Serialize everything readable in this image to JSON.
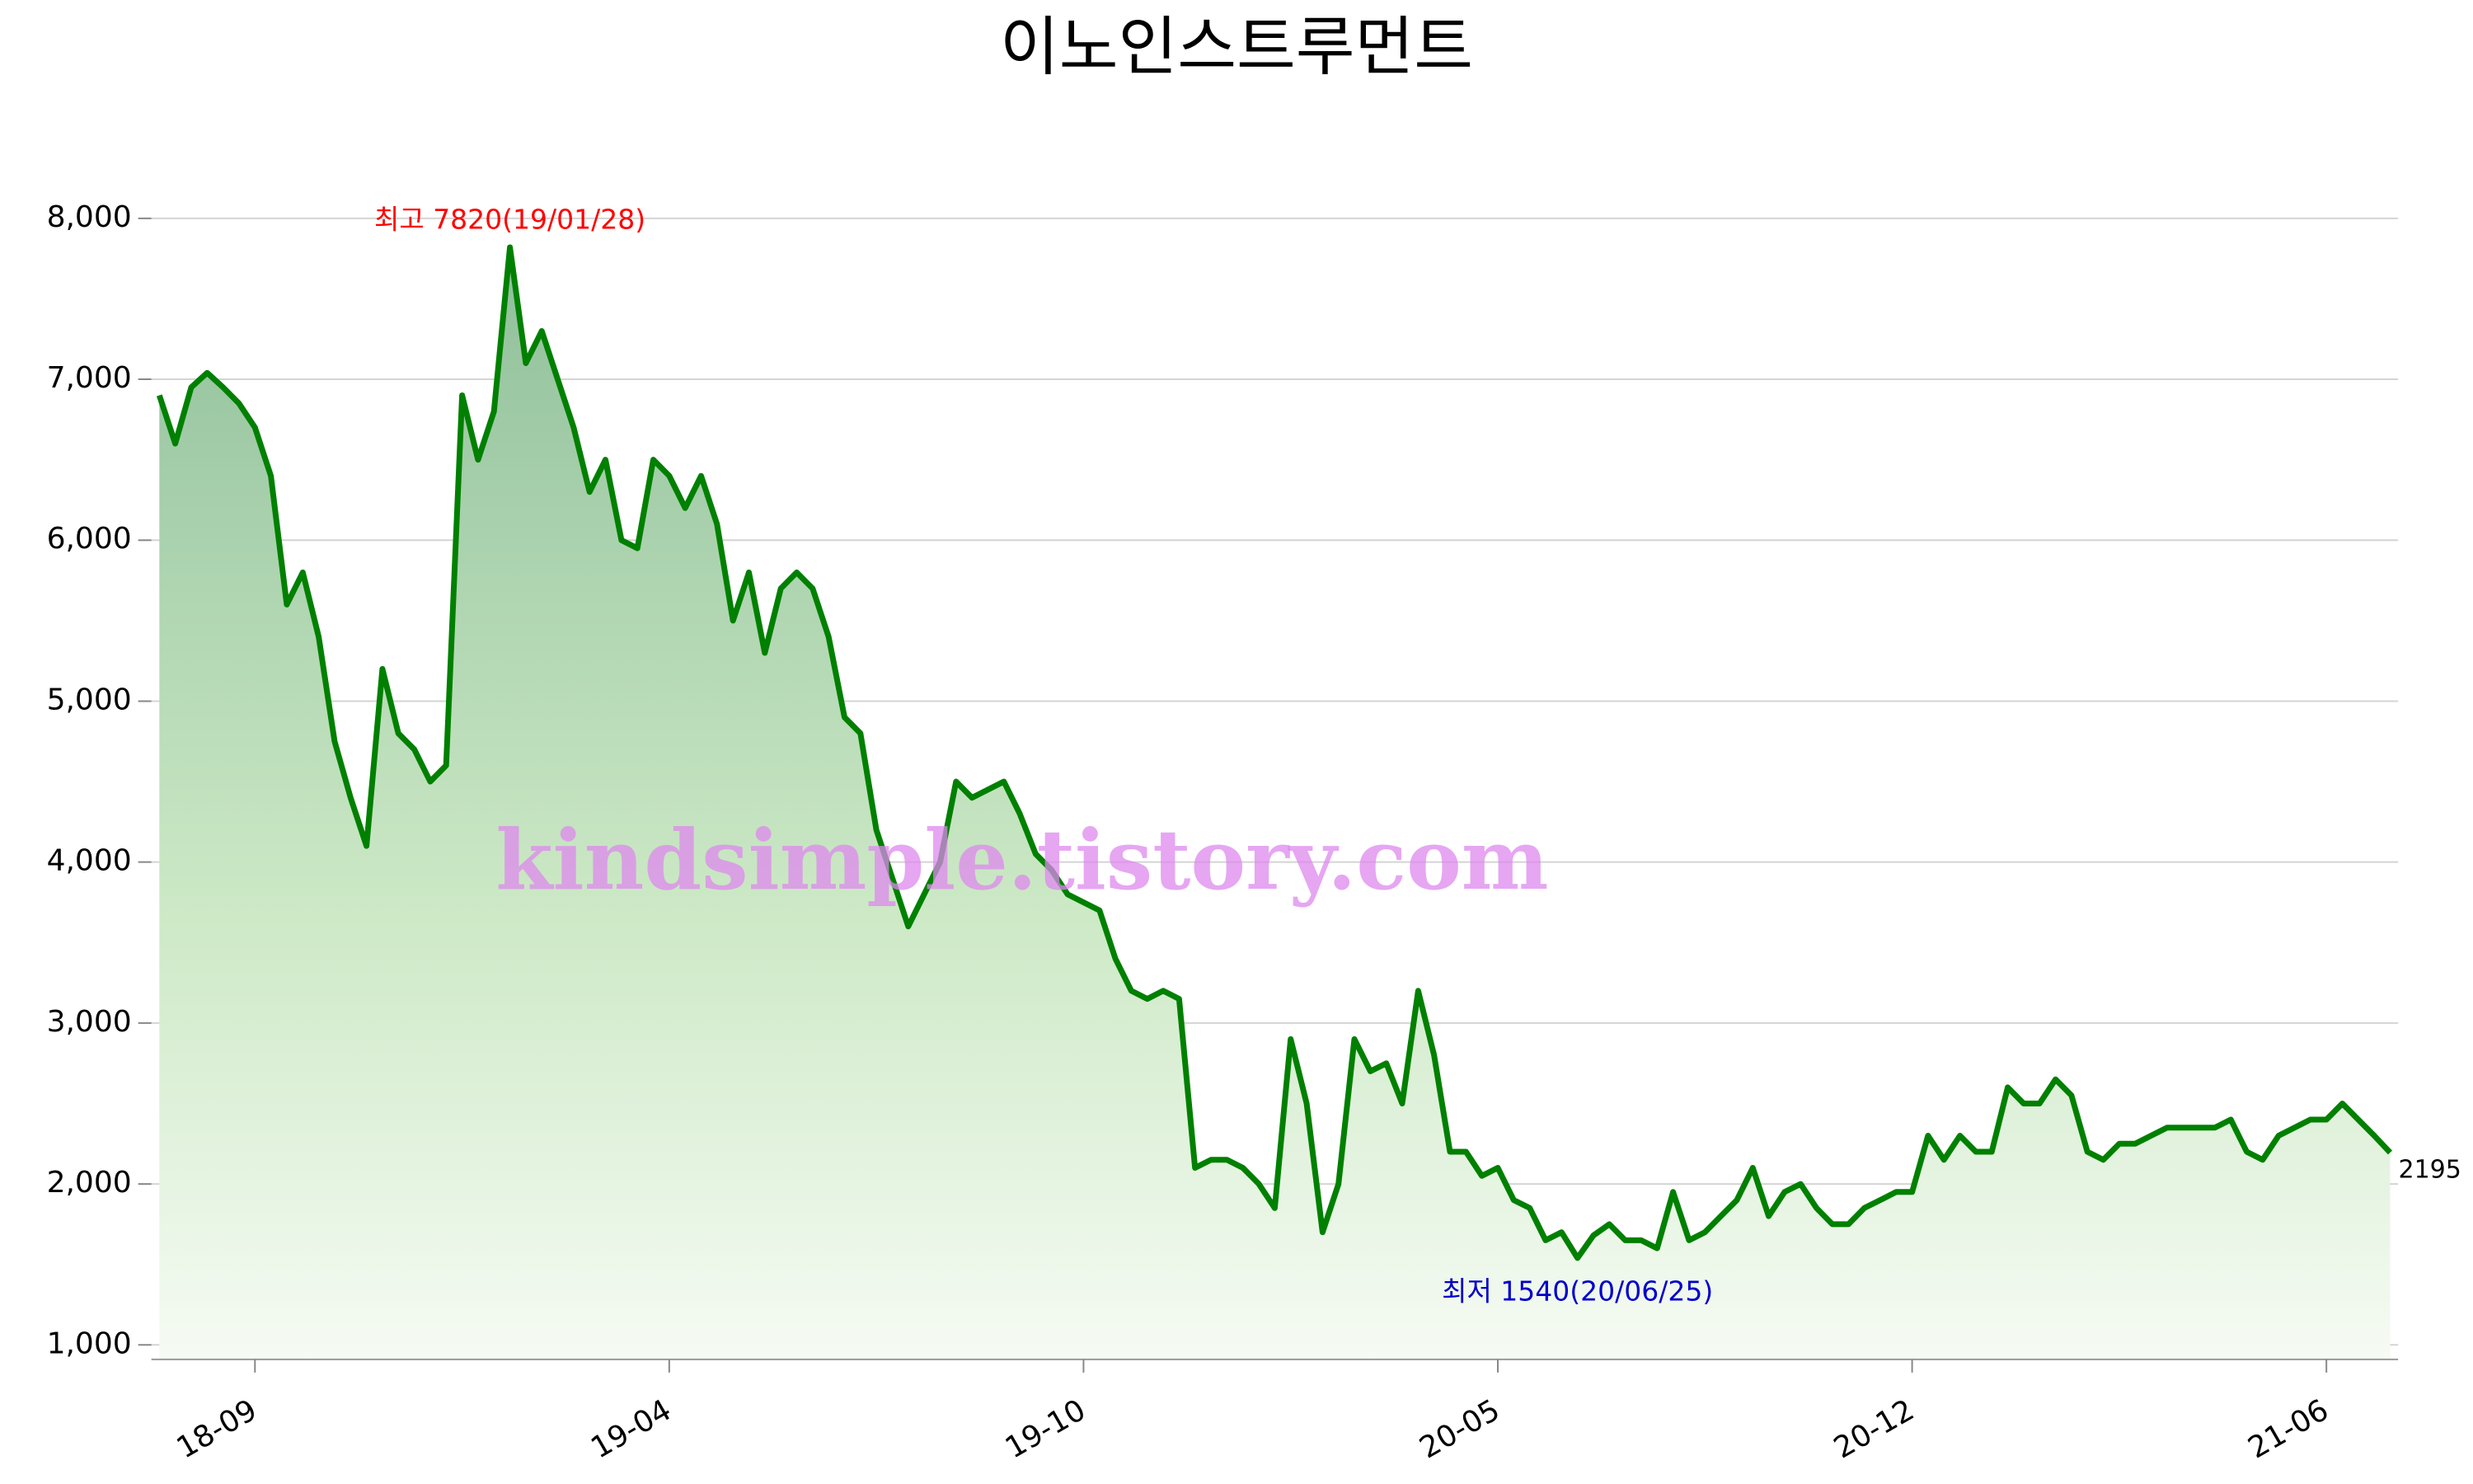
{
  "chart_data": {
    "type": "line",
    "title": "이노인스트루먼트",
    "watermark": "kindsimple.tistory.com",
    "high_label": "최고 7820(19/01/28)",
    "low_label": "최저 1540(20/06/25)",
    "last_label": "2195",
    "color": "#008000",
    "high_color": "#ff0000",
    "low_color": "#0000cc",
    "grid": true,
    "ylim": [
      910,
      8000
    ],
    "yticks": [
      {
        "value": 1000,
        "label": "1,000"
      },
      {
        "value": 2000,
        "label": "2,000"
      },
      {
        "value": 3000,
        "label": "3,000"
      },
      {
        "value": 4000,
        "label": "4,000"
      },
      {
        "value": 5000,
        "label": "5,000"
      },
      {
        "value": 6000,
        "label": "6,000"
      },
      {
        "value": 7000,
        "label": "7,000"
      },
      {
        "value": 8000,
        "label": "8,000"
      }
    ],
    "categories": [
      null,
      null,
      null,
      null,
      null,
      null,
      "18-09",
      null,
      null,
      null,
      null,
      null,
      null,
      null,
      null,
      null,
      null,
      null,
      null,
      null,
      null,
      null,
      null,
      null,
      null,
      null,
      null,
      null,
      null,
      null,
      null,
      null,
      "19-04",
      null,
      null,
      null,
      null,
      null,
      null,
      null,
      null,
      null,
      null,
      null,
      null,
      null,
      null,
      null,
      null,
      null,
      null,
      null,
      null,
      null,
      null,
      null,
      null,
      null,
      "19-10",
      null,
      null,
      null,
      null,
      null,
      null,
      null,
      null,
      null,
      null,
      null,
      null,
      null,
      null,
      null,
      null,
      null,
      null,
      null,
      null,
      null,
      null,
      null,
      null,
      null,
      "20-05",
      null,
      null,
      null,
      null,
      null,
      null,
      null,
      null,
      null,
      null,
      null,
      null,
      null,
      null,
      null,
      null,
      null,
      null,
      null,
      null,
      null,
      null,
      null,
      null,
      null,
      "20-12",
      null,
      null,
      null,
      null,
      null,
      null,
      null,
      null,
      null,
      null,
      null,
      null,
      null,
      null,
      null,
      null,
      null,
      null,
      null,
      null,
      null,
      null,
      null,
      null,
      null,
      "21-06",
      null,
      null,
      null,
      null
    ],
    "values": [
      6900,
      6600,
      6950,
      7040,
      6950,
      6850,
      6700,
      6400,
      5600,
      5800,
      5400,
      4750,
      4400,
      4100,
      5200,
      4800,
      4700,
      4500,
      4600,
      6900,
      6500,
      6800,
      7820,
      7100,
      7300,
      7000,
      6700,
      6300,
      6500,
      6000,
      5950,
      6500,
      6400,
      6200,
      6400,
      6100,
      5500,
      5800,
      5300,
      5700,
      5800,
      5700,
      5400,
      4900,
      4800,
      4200,
      3900,
      3600,
      3800,
      4000,
      4500,
      4400,
      4450,
      4500,
      4300,
      4050,
      3950,
      3800,
      3750,
      3700,
      3400,
      3200,
      3150,
      3200,
      3150,
      2100,
      2150,
      2150,
      2100,
      2000,
      1850,
      2900,
      2500,
      1700,
      2000,
      2900,
      2700,
      2750,
      2500,
      3200,
      2800,
      2200,
      2200,
      2050,
      2100,
      1900,
      1850,
      1650,
      1700,
      1540,
      1680,
      1750,
      1650,
      1650,
      1600,
      1950,
      1650,
      1700,
      1800,
      1900,
      2100,
      1800,
      1950,
      2000,
      1850,
      1750,
      1750,
      1850,
      1900,
      1950,
      1950,
      2300,
      2150,
      2300,
      2200,
      2200,
      2600,
      2500,
      2500,
      2650,
      2550,
      2200,
      2150,
      2250,
      2250,
      2300,
      2350,
      2350,
      2350,
      2350,
      2400,
      2200,
      2150,
      2300,
      2350,
      2400,
      2400,
      2500,
      2400,
      2300,
      2195
    ]
  }
}
